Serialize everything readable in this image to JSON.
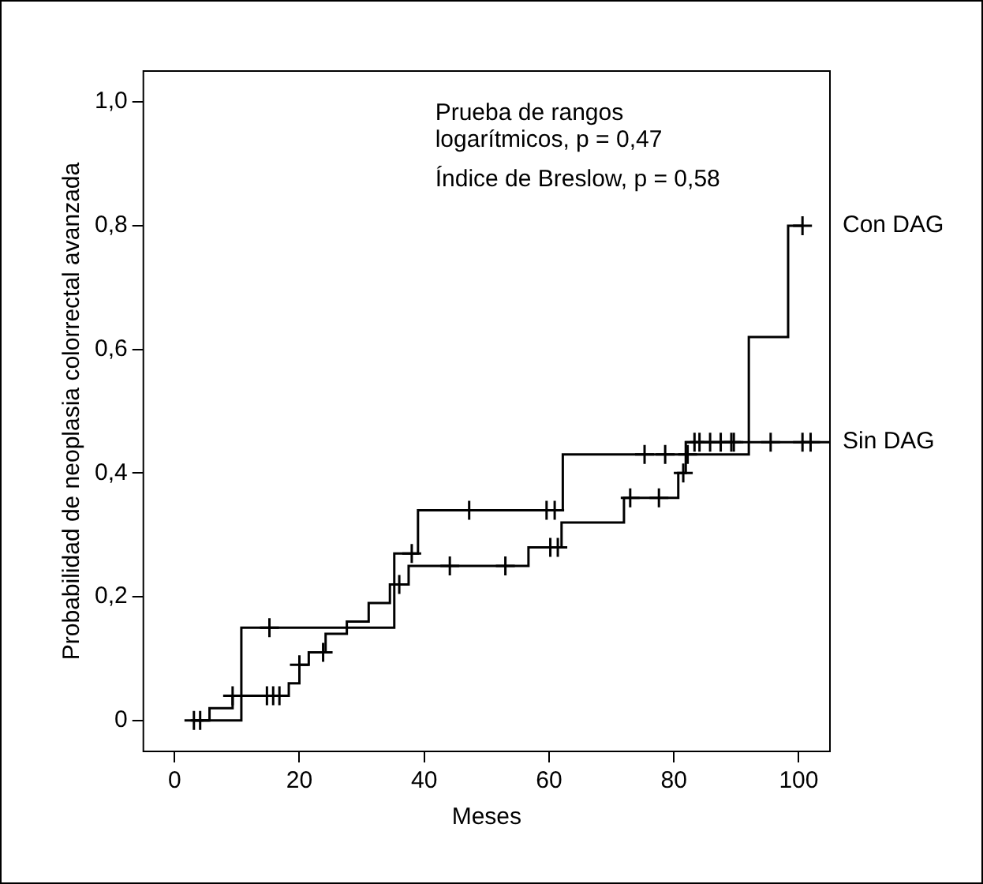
{
  "chart_data": {
    "type": "step",
    "xlabel": "Meses",
    "ylabel": "Probabilidad de neoplasia colorrectal avanzada",
    "annotations": [
      "Prueba de rangos logarítmicos, p = 0,47",
      "Índice de Breslow, p = 0,58"
    ],
    "xlim": [
      -5,
      105
    ],
    "xticks": [
      0,
      20,
      40,
      60,
      80,
      100
    ],
    "ylim": [
      -0.05,
      1.05
    ],
    "yticks": [
      0,
      {
        "value": 0.2,
        "label": "0,2"
      },
      {
        "value": 0.4,
        "label": "0,4"
      },
      {
        "value": 0.6,
        "label": "0,6"
      },
      {
        "value": 0.8,
        "label": "0,8"
      },
      {
        "value": 1,
        "label": "1,0"
      }
    ],
    "grid": false,
    "legend": false,
    "series": [
      {
        "name": "Con DAG",
        "color": "#000000",
        "marker": "none",
        "x": [
          3.1,
          10.7,
          15.2,
          35.2,
          38,
          39,
          47.2,
          59.6,
          60.9,
          62.2,
          75.3,
          78.6,
          82.2,
          92,
          98.3,
          100.6
        ],
        "values": [
          0,
          0.15,
          0.15,
          0.27,
          0.27,
          0.34,
          0.34,
          0.34,
          0.34,
          0.43,
          0.43,
          0.43,
          0.43,
          0.62,
          0.8,
          0.8
        ]
      },
      {
        "name": "Sin DAG",
        "color": "#000000",
        "marker": "none",
        "x": [
          3.1,
          5.6,
          9.3,
          14.8,
          15.8,
          16.8,
          18.3,
          20,
          21.5,
          23.8,
          24.2,
          27.6,
          31.1,
          34.5,
          36,
          37.5,
          44.1,
          53,
          56.7,
          60.2,
          61.4,
          62,
          72,
          73,
          77.6,
          80.7,
          81.5,
          81.9,
          83.3,
          84.1,
          85.8,
          87.5,
          89.2,
          89.6,
          95.5,
          100.6,
          101.9,
          105
        ],
        "values": [
          0,
          0.02,
          0.04,
          0.04,
          0.04,
          0.04,
          0.06,
          0.09,
          0.11,
          0.11,
          0.14,
          0.16,
          0.19,
          0.22,
          0.22,
          0.25,
          0.25,
          0.25,
          0.28,
          0.28,
          0.28,
          0.32,
          0.36,
          0.36,
          0.36,
          0.4,
          0.4,
          0.45,
          0.45,
          0.45,
          0.45,
          0.45,
          0.45,
          0.45,
          0.45,
          0.45,
          0.45,
          0.45
        ]
      },
      {
        "type": "scatter",
        "color": "#000000",
        "marker": "cross",
        "x": [
          15.2,
          38,
          47.2,
          59.6,
          60.9,
          75.3,
          78.6,
          82.2,
          100.6
        ],
        "values": [
          0.15,
          0.27,
          0.34,
          0.34,
          0.34,
          0.43,
          0.43,
          0.43,
          0.8
        ]
      },
      {
        "type": "scatter",
        "color": "#000000",
        "marker": "cross",
        "x": [
          3.1,
          4.1,
          9.3,
          14.8,
          15.8,
          16.8,
          20,
          23.8,
          36,
          44.1,
          53,
          60.2,
          61.4,
          73,
          77.6,
          81.5,
          83.3,
          84.1,
          85.8,
          87.5,
          89.2,
          89.6,
          95.5,
          100.6,
          101.9
        ],
        "values": [
          0,
          0,
          0.04,
          0.04,
          0.04,
          0.04,
          0.09,
          0.11,
          0.22,
          0.25,
          0.25,
          0.28,
          0.28,
          0.36,
          0.36,
          0.4,
          0.45,
          0.45,
          0.45,
          0.45,
          0.45,
          0.45,
          0.45,
          0.45,
          0.45
        ]
      }
    ]
  }
}
